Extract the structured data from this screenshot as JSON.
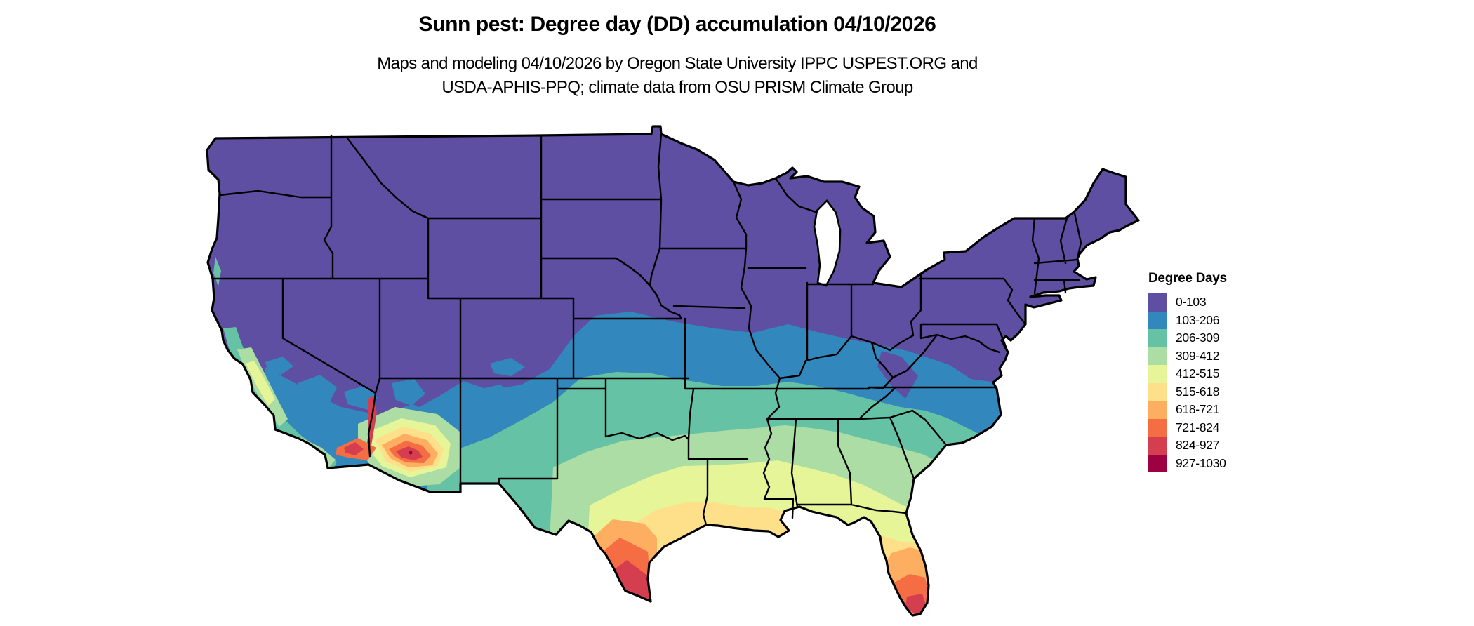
{
  "header": {
    "title": "Sunn pest: Degree day (DD) accumulation 04/10/2026",
    "subtitle_line1": "Maps and modeling 04/10/2026 by Oregon State University IPPC USPEST.ORG and",
    "subtitle_line2": "USDA-APHIS-PPQ; climate data from OSU PRISM Climate Group"
  },
  "legend": {
    "title": "Degree Days",
    "items": [
      {
        "label": "0-103",
        "color": "#5e4fa2"
      },
      {
        "label": "103-206",
        "color": "#3288bd"
      },
      {
        "label": "206-309",
        "color": "#66c2a5"
      },
      {
        "label": "309-412",
        "color": "#abdda4"
      },
      {
        "label": "412-515",
        "color": "#e6f598"
      },
      {
        "label": "515-618",
        "color": "#fee08b"
      },
      {
        "label": "618-721",
        "color": "#fdae61"
      },
      {
        "label": "721-824",
        "color": "#f46d43"
      },
      {
        "label": "824-927",
        "color": "#d53e4f"
      },
      {
        "label": "927-1030",
        "color": "#9e0142"
      }
    ]
  },
  "map": {
    "region": "Contiguous United States",
    "border_color": "#000000",
    "background_color": "#ffffff"
  }
}
